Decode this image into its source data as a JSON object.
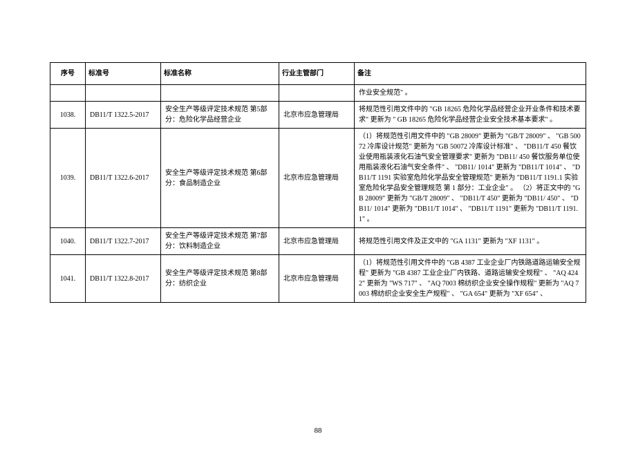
{
  "headers": {
    "seq": "序号",
    "code": "标准号",
    "name": "标准名称",
    "dept": "行业主管部门",
    "note": "备注"
  },
  "rows": [
    {
      "seq": "",
      "code": "",
      "name": "",
      "dept": "",
      "note": "作业安全规范\" 。"
    },
    {
      "seq": "1038.",
      "code": "DB11/T 1322.5-2017",
      "name": "安全生产等级评定技术规范 第5部分：危险化学品经营企业",
      "dept": "北京市应急管理局",
      "note": "将规范性引用文件中的 \"GB 18265 危险化学品经营企业开业条件和技术要求\" 更新为 \" GB 18265 危险化学品经营企业安全技术基本要求\" 。"
    },
    {
      "seq": "1039.",
      "code": "DB11/T 1322.6-2017",
      "name": "安全生产等级评定技术规范 第6部分：食品制造企业",
      "dept": "北京市应急管理局",
      "note": "（1）将规范性引用文件中的 \"GB 28009\" 更新为 \"GB/T 28009\" 、 \"GB 50072 冷库设计规范\" 更新为 \"GB 50072 冷库设计标准\" 、 \"DB11/T 450  餐饮业使用瓶装液化石油气安全管理要求\" 更新为 \"DB11/ 450 餐饮服务单位使用瓶装液化石油气安全条件\" 、 \"DB11/ 1014\" 更新为 \"DB11/T 1014\" 、 \"DB11/T 1191  实验室危险化学品安全管理规范\" 更新为 \"DB11/T 1191.1 实验室危险化学品安全管理规范 第 1 部分：工业企业\" 。\n（2）将正文中的 \"GB 28009\" 更新为 \"GB/T 28009\" 、 \"DB11/T 450\" 更新为 \"DB11/ 450\" 、 \"DB11/ 1014\" 更新为 \"DB11/T 1014\" 、 \"DB11/T 1191\" 更新为 \"DB11/T 1191.1\" 。"
    },
    {
      "seq": "1040.",
      "code": "DB11/T 1322.7-2017",
      "name": "安全生产等级评定技术规范 第7部分：饮料制造企业",
      "dept": "北京市应急管理局",
      "note": "将规范性引用文件及正文中的 \"GA 1131\" 更新为 \"XF 1131\" 。"
    },
    {
      "seq": "1041.",
      "code": "DB11/T 1322.8-2017",
      "name": "安全生产等级评定技术规范 第8部分：纺织企业",
      "dept": "北京市应急管理局",
      "note": "（1）将规范性引用文件中的 \"GB 4387 工业企业厂内铁路道路运输安全规程\" 更新为 \"GB 4387 工业企业厂内铁路、道路运输安全规程\" 、 \"AQ 4242\" 更新为 \"WS 717\" 、 \"AQ 7003 棉纺织企业安全操作规程\" 更新为 \"AQ 7003 棉纺织企业安全生产规程\" 、 \"GA 654\" 更新为 \"XF 654\" 、"
    }
  ],
  "page_number": "88"
}
